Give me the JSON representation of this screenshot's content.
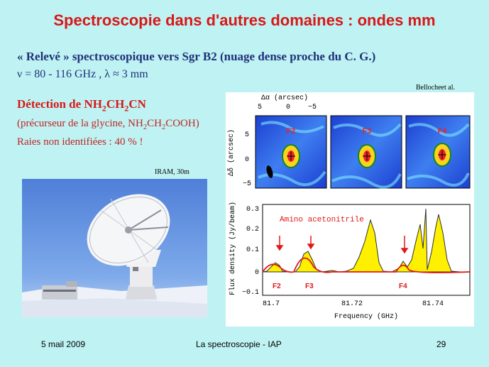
{
  "slide": {
    "title": "Spectroscopie dans d'autres domaines : ondes mm",
    "line1": "« Relevé » spectroscopique vers Sgr B2 (nuage dense proche du C. G.)",
    "line2": "ν = 80 - 116 GHz ,  λ ≈ 3 mm",
    "detection_prefix": "Détection de ",
    "detection_molecule": "NH2CH2CN",
    "line4": "(précurseur de la glycine, NH2CH2COOH)",
    "line5": "Raies non identifiées : 40 % !"
  },
  "photo": {
    "caption": "IRAM, 30m"
  },
  "figure": {
    "credit": "Bellocheet al.",
    "maps": {
      "top_axis_label": "Δα (arcsec)",
      "top_ticks": [
        "5",
        "0",
        "−5"
      ],
      "left_axis_label": "Δδ (arcsec)",
      "left_ticks": [
        "5",
        "0",
        "−5"
      ],
      "panels": [
        "F2",
        "F3",
        "F4"
      ]
    },
    "spectrum": {
      "annotation": "Amino acetonitrile",
      "y_label": "Flux density (Jy/beam)",
      "x_label": "Frequency (GHz)",
      "y_ticks": [
        "0.3",
        "0.2",
        "0.1",
        "0",
        "−0.1"
      ],
      "x_ticks": [
        "81.7",
        "81.72",
        "81.74"
      ],
      "line_labels": [
        "F2",
        "F3",
        "F4"
      ]
    }
  },
  "footer": {
    "date": "5 mail 2009",
    "center": "La spectroscopie - IAP",
    "page": "29"
  }
}
